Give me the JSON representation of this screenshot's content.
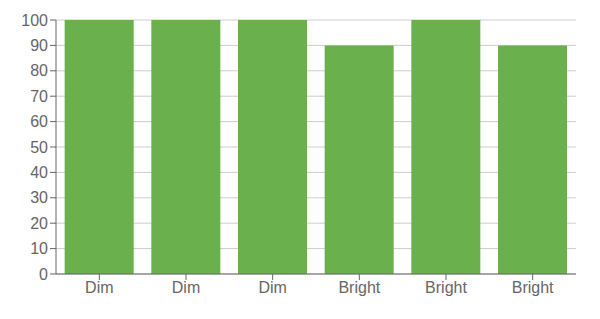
{
  "chart_data": {
    "type": "bar",
    "categories": [
      "Dim",
      "Dim",
      "Dim",
      "Bright",
      "Bright",
      "Bright"
    ],
    "values": [
      100,
      100,
      100,
      90,
      100,
      90
    ],
    "color": "#6ab04c",
    "ylim": [
      0,
      100
    ],
    "yticks": [
      0,
      10,
      20,
      30,
      40,
      50,
      60,
      70,
      80,
      90,
      100
    ],
    "grid": true
  }
}
